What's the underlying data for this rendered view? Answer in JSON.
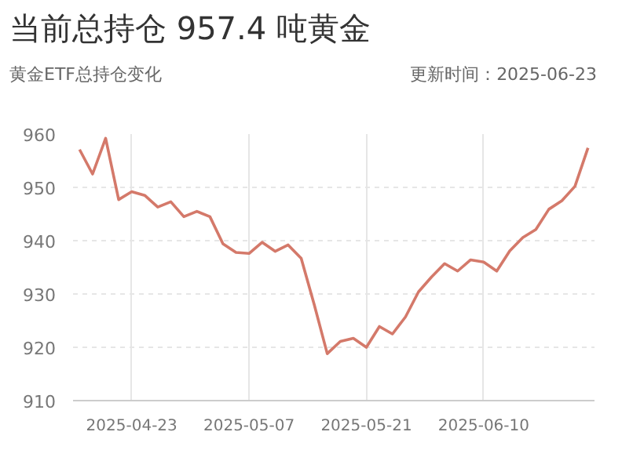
{
  "chart_data": {
    "type": "line",
    "title": "当前总持仓 957.4 吨黄金",
    "subtitle": "黄金ETF总持仓变化",
    "annotations": [
      "更新时间：2025-06-23"
    ],
    "categories": [
      null,
      null,
      null,
      null,
      "2025-04-23",
      null,
      null,
      null,
      null,
      null,
      null,
      null,
      null,
      "2025-05-07",
      null,
      null,
      null,
      null,
      null,
      null,
      null,
      null,
      "2025-05-21",
      null,
      null,
      null,
      null,
      null,
      null,
      null,
      null,
      "2025-06-10",
      null,
      null,
      null,
      null,
      null,
      null,
      null,
      null
    ],
    "series": [
      {
        "color": "#d4796a",
        "values": [
          957.1,
          952.5,
          959.2,
          947.7,
          949.2,
          948.5,
          946.3,
          947.3,
          944.5,
          945.5,
          944.5,
          939.4,
          937.8,
          937.6,
          939.7,
          938.0,
          939.2,
          936.7,
          928.0,
          918.8,
          921.1,
          921.7,
          920.0,
          923.9,
          922.5,
          925.7,
          930.4,
          933.2,
          935.7,
          934.3,
          936.4,
          936.0,
          934.3,
          938.1,
          940.6,
          942.1,
          945.9,
          947.5,
          950.2,
          957.4
        ]
      }
    ],
    "ylim": [
      910,
      960
    ],
    "yticks": [
      910,
      920,
      930,
      940,
      950,
      960
    ],
    "grid": true,
    "marker": "none",
    "line_style": "solid"
  }
}
